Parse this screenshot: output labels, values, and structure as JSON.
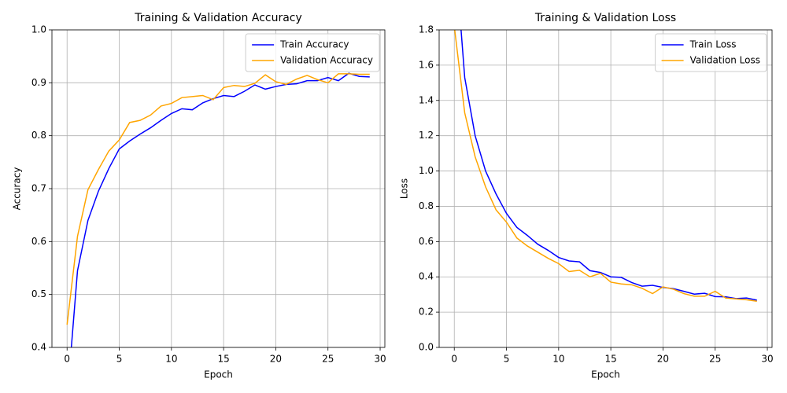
{
  "chart_data": [
    {
      "type": "line",
      "title": "Training & Validation Accuracy",
      "xlabel": "Epoch",
      "ylabel": "Accuracy",
      "x": [
        0,
        1,
        2,
        3,
        4,
        5,
        6,
        7,
        8,
        9,
        10,
        11,
        12,
        13,
        14,
        15,
        16,
        17,
        18,
        19,
        20,
        21,
        22,
        23,
        24,
        25,
        26,
        27,
        28,
        29
      ],
      "series": [
        {
          "name": "Train Accuracy",
          "color": "#0000ff",
          "values": [
            0.3,
            0.545,
            0.64,
            0.695,
            0.738,
            0.775,
            0.79,
            0.803,
            0.815,
            0.829,
            0.842,
            0.851,
            0.849,
            0.862,
            0.87,
            0.876,
            0.874,
            0.884,
            0.896,
            0.888,
            0.893,
            0.897,
            0.898,
            0.904,
            0.904,
            0.91,
            0.904,
            0.918,
            0.912,
            0.911
          ]
        },
        {
          "name": "Validation Accuracy",
          "color": "#ffa500",
          "values": [
            0.443,
            0.61,
            0.698,
            0.736,
            0.771,
            0.792,
            0.825,
            0.829,
            0.839,
            0.856,
            0.861,
            0.872,
            0.874,
            0.876,
            0.868,
            0.891,
            0.895,
            0.893,
            0.899,
            0.915,
            0.902,
            0.897,
            0.907,
            0.914,
            0.906,
            0.9,
            0.917,
            0.917,
            0.916,
            0.916
          ]
        }
      ],
      "xlim": [
        -1.45,
        30.45
      ],
      "xticks": [
        0,
        5,
        10,
        15,
        20,
        25,
        30
      ],
      "ylim": [
        0.4,
        1.0
      ],
      "yticks": [
        0.4,
        0.5,
        0.6,
        0.7,
        0.8,
        0.9,
        {
          "value": 1,
          "label": "1.0"
        }
      ],
      "grid": true,
      "legend": "upper right"
    },
    {
      "type": "line",
      "title": "Training & Validation Loss",
      "xlabel": "Epoch",
      "ylabel": "Loss",
      "x": [
        0,
        1,
        2,
        3,
        4,
        5,
        6,
        7,
        8,
        9,
        10,
        11,
        12,
        13,
        14,
        15,
        16,
        17,
        18,
        19,
        20,
        21,
        22,
        23,
        24,
        25,
        26,
        27,
        28,
        29
      ],
      "series": [
        {
          "name": "Train Loss",
          "color": "#0000ff",
          "values": [
            2.3,
            1.53,
            1.2,
            1.0,
            0.87,
            0.76,
            0.68,
            0.635,
            0.585,
            0.55,
            0.51,
            0.49,
            0.485,
            0.435,
            0.425,
            0.4,
            0.397,
            0.368,
            0.347,
            0.352,
            0.34,
            0.333,
            0.318,
            0.302,
            0.307,
            0.288,
            0.287,
            0.277,
            0.28,
            0.268
          ]
        },
        {
          "name": "Validation Loss",
          "color": "#ffa500",
          "values": [
            1.82,
            1.33,
            1.08,
            0.91,
            0.78,
            0.71,
            0.62,
            0.575,
            0.54,
            0.505,
            0.475,
            0.43,
            0.437,
            0.4,
            0.42,
            0.37,
            0.36,
            0.355,
            0.335,
            0.305,
            0.343,
            0.33,
            0.305,
            0.29,
            0.29,
            0.318,
            0.28,
            0.275,
            0.27,
            0.262
          ]
        }
      ],
      "xlim": [
        -1.45,
        30.45
      ],
      "xticks": [
        0,
        5,
        10,
        15,
        20,
        25,
        30
      ],
      "ylim": [
        0,
        1.8
      ],
      "yticks": [
        {
          "value": 0,
          "label": "0.0"
        },
        0.2,
        0.4,
        0.6,
        0.8,
        {
          "value": 1,
          "label": "1.0"
        },
        1.2,
        1.4,
        1.6,
        1.8
      ],
      "grid": true,
      "legend": "upper right"
    }
  ]
}
